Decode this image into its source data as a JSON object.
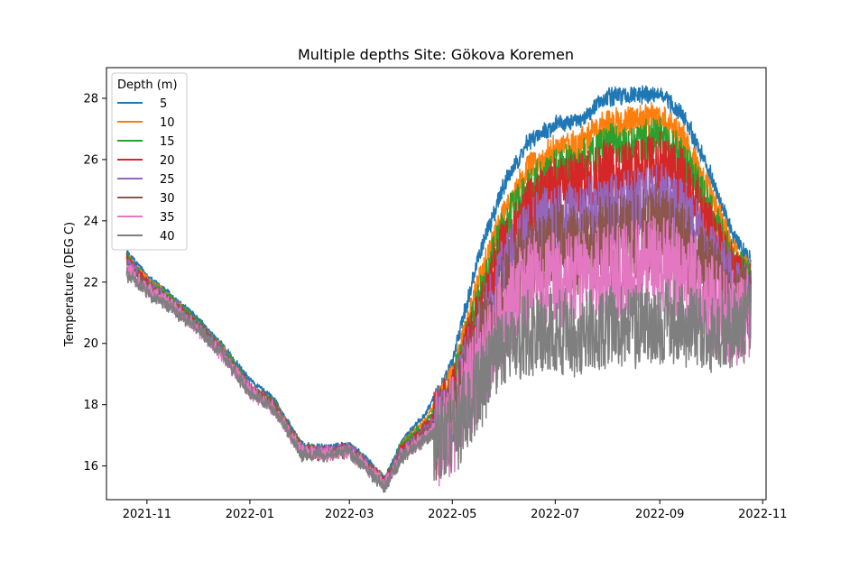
{
  "chart_data": {
    "type": "line",
    "title": "Multiple depths Site: Gökova Koremen",
    "xlabel": "",
    "ylabel": "Temperature (DEG C)",
    "xlim": [
      "2021-10-08",
      "2022-11-03"
    ],
    "ylim": [
      14.9,
      29.0
    ],
    "x_ticks": [
      "2021-11",
      "2022-01",
      "2022-03",
      "2022-05",
      "2022-07",
      "2022-09",
      "2022-11"
    ],
    "y_ticks": [
      16,
      18,
      20,
      22,
      24,
      26,
      28
    ],
    "legend": {
      "title": "Depth (m)",
      "position": "top-left"
    },
    "grid": false,
    "x": [
      "2021-10-20",
      "2021-11-01",
      "2021-11-15",
      "2021-12-01",
      "2021-12-15",
      "2022-01-01",
      "2022-01-15",
      "2022-02-01",
      "2022-02-15",
      "2022-03-01",
      "2022-03-10",
      "2022-03-22",
      "2022-04-01",
      "2022-04-15",
      "2022-05-01",
      "2022-05-15",
      "2022-06-01",
      "2022-06-15",
      "2022-07-01",
      "2022-07-15",
      "2022-08-01",
      "2022-08-15",
      "2022-09-01",
      "2022-09-15",
      "2022-10-01",
      "2022-10-15",
      "2022-10-25"
    ],
    "series": [
      {
        "name": "5",
        "color": "#1f77b4",
        "swing": 0.25,
        "values": [
          23.0,
          22.2,
          21.6,
          20.8,
          20.0,
          18.8,
          18.2,
          16.7,
          16.6,
          16.7,
          16.3,
          15.6,
          16.8,
          17.7,
          19.4,
          22.6,
          25.3,
          26.6,
          27.2,
          27.3,
          28.1,
          28.1,
          28.2,
          27.5,
          25.6,
          23.5,
          22.7
        ]
      },
      {
        "name": "10",
        "color": "#ff7f0e",
        "swing": 0.45,
        "values": [
          22.9,
          22.1,
          21.5,
          20.7,
          19.9,
          18.6,
          18.1,
          16.6,
          16.5,
          16.6,
          16.2,
          15.5,
          16.7,
          17.5,
          18.9,
          21.8,
          24.5,
          25.8,
          26.4,
          26.6,
          27.3,
          27.3,
          27.5,
          26.8,
          25.0,
          23.0,
          22.3
        ]
      },
      {
        "name": "15",
        "color": "#2ca02c",
        "swing": 0.7,
        "values": [
          22.9,
          22.0,
          21.5,
          20.7,
          19.9,
          18.6,
          18.1,
          16.6,
          16.5,
          16.6,
          16.2,
          15.5,
          16.7,
          17.4,
          18.6,
          21.3,
          24.0,
          25.2,
          25.8,
          26.0,
          26.6,
          26.6,
          26.8,
          26.2,
          24.5,
          22.6,
          22.1
        ]
      },
      {
        "name": "20",
        "color": "#d62728",
        "swing": 1.0,
        "values": [
          22.8,
          22.0,
          21.4,
          20.6,
          19.8,
          18.6,
          18.0,
          16.6,
          16.5,
          16.6,
          16.2,
          15.5,
          16.6,
          17.3,
          18.3,
          20.8,
          23.4,
          24.6,
          25.2,
          25.4,
          25.8,
          25.8,
          26.1,
          25.5,
          23.9,
          22.3,
          21.9
        ]
      },
      {
        "name": "25",
        "color": "#9467bd",
        "swing": 1.3,
        "values": [
          22.7,
          21.9,
          21.4,
          20.6,
          19.8,
          18.5,
          18.0,
          16.5,
          16.5,
          16.6,
          16.1,
          15.4,
          16.5,
          17.2,
          18.0,
          20.2,
          22.6,
          23.7,
          24.2,
          24.3,
          24.5,
          24.6,
          24.9,
          24.4,
          23.0,
          21.8,
          21.6
        ]
      },
      {
        "name": "30",
        "color": "#8c564b",
        "swing": 1.5,
        "values": [
          22.6,
          21.9,
          21.3,
          20.6,
          19.8,
          18.5,
          18.0,
          16.5,
          16.4,
          16.5,
          16.1,
          15.4,
          16.4,
          17.1,
          17.8,
          19.8,
          22.0,
          22.9,
          23.3,
          23.4,
          23.6,
          23.7,
          24.0,
          23.5,
          22.3,
          21.4,
          21.4
        ]
      },
      {
        "name": "35",
        "color": "#e377c2",
        "swing": 1.6,
        "values": [
          22.5,
          21.8,
          21.3,
          20.5,
          19.7,
          18.5,
          17.9,
          16.5,
          16.4,
          16.5,
          16.1,
          15.4,
          16.4,
          17.0,
          17.6,
          19.3,
          21.3,
          22.1,
          22.4,
          22.4,
          22.6,
          22.7,
          23.0,
          22.6,
          21.6,
          21.1,
          21.3
        ]
      },
      {
        "name": "40",
        "color": "#7f7f7f",
        "swing": 1.4,
        "values": [
          22.3,
          21.7,
          21.2,
          20.5,
          19.7,
          18.4,
          17.9,
          16.4,
          16.4,
          16.5,
          16.0,
          15.3,
          16.3,
          16.9,
          17.3,
          18.6,
          20.2,
          20.6,
          20.7,
          20.6,
          20.8,
          20.8,
          21.0,
          20.9,
          20.6,
          20.9,
          21.2
        ]
      }
    ]
  }
}
